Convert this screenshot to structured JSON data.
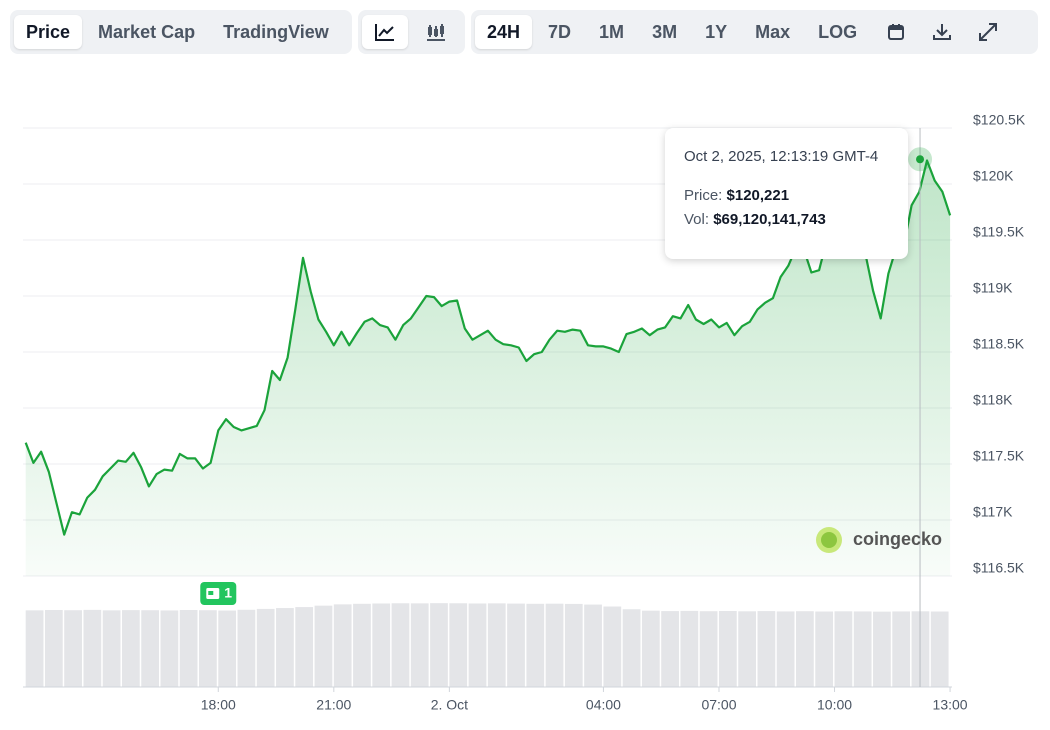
{
  "toolbar": {
    "tabs": [
      "Price",
      "Market Cap",
      "TradingView"
    ],
    "ranges": [
      "24H",
      "7D",
      "1M",
      "3M",
      "1Y",
      "Max",
      "LOG"
    ]
  },
  "chart_data": {
    "type": "line",
    "x": [
      13.0,
      13.2,
      13.4,
      13.6,
      13.8,
      14.0,
      14.2,
      14.4,
      14.6,
      14.8,
      15.0,
      15.2,
      15.4,
      15.6,
      15.8,
      16.0,
      16.2,
      16.4,
      16.6,
      16.8,
      17.0,
      17.2,
      17.4,
      17.6,
      17.8,
      18.0,
      18.2,
      18.4,
      18.6,
      18.8,
      19.0,
      19.2,
      19.4,
      19.6,
      19.8,
      20.0,
      20.2,
      20.4,
      20.6,
      20.8,
      21.0,
      21.2,
      21.4,
      21.6,
      21.8,
      22.0,
      22.2,
      22.4,
      22.6,
      22.8,
      23.0,
      23.2,
      23.4,
      23.6,
      23.8,
      24.0,
      24.2,
      24.4,
      24.6,
      24.8,
      25.0,
      25.2,
      25.4,
      25.6,
      25.8,
      26.0,
      26.2,
      26.4,
      26.6,
      26.8,
      27.0,
      27.2,
      27.4,
      27.6,
      27.8,
      28.0,
      28.2,
      28.4,
      28.6,
      28.8,
      29.0,
      29.2,
      29.4,
      29.6,
      29.8,
      30.0,
      30.2,
      30.4,
      30.6,
      30.8,
      31.0,
      31.2,
      31.4,
      31.6,
      31.8,
      32.0,
      32.2,
      32.4,
      32.6,
      32.8,
      33.0,
      33.2,
      33.4,
      33.6,
      33.8,
      34.0,
      34.2,
      34.4,
      34.6,
      34.8,
      35.0,
      35.2,
      35.4,
      35.6,
      35.8,
      36.0,
      36.2,
      36.4,
      36.6,
      36.8,
      37.0
    ],
    "values": [
      117690,
      117510,
      117610,
      117430,
      117150,
      116870,
      117070,
      117050,
      117200,
      117270,
      117390,
      117460,
      117530,
      117520,
      117600,
      117470,
      117300,
      117410,
      117450,
      117440,
      117590,
      117550,
      117550,
      117460,
      117510,
      117800,
      117900,
      117830,
      117800,
      117820,
      117840,
      117980,
      118330,
      118250,
      118450,
      118880,
      119340,
      119040,
      118790,
      118680,
      118560,
      118680,
      118560,
      118670,
      118770,
      118800,
      118740,
      118720,
      118610,
      118740,
      118800,
      118900,
      119000,
      118990,
      118910,
      118950,
      118960,
      118710,
      118610,
      118650,
      118690,
      118610,
      118570,
      118560,
      118540,
      118420,
      118480,
      118500,
      118610,
      118690,
      118680,
      118700,
      118690,
      118560,
      118550,
      118550,
      118530,
      118500,
      118660,
      118680,
      118710,
      118650,
      118700,
      118720,
      118820,
      118800,
      118920,
      118790,
      118750,
      118790,
      118720,
      118760,
      118650,
      118730,
      118770,
      118880,
      118940,
      118980,
      119170,
      119270,
      119430,
      119420,
      119210,
      119230,
      119500,
      119710,
      119670,
      119640,
      119550,
      119380,
      119050,
      118800,
      119200,
      119430,
      119450,
      119810,
      119930,
      120210,
      120030,
      119930,
      119720
    ],
    "color": "#1ba33b",
    "xlim": [
      12.93,
      37.05
    ],
    "xticks": [
      {
        "value": 18,
        "label": "18:00"
      },
      {
        "value": 21,
        "label": "21:00"
      },
      {
        "value": 24,
        "label": "2. Oct"
      },
      {
        "value": 28,
        "label": "04:00"
      },
      {
        "value": 31,
        "label": "07:00"
      },
      {
        "value": 34,
        "label": "10:00"
      },
      {
        "value": 37,
        "label": "13:00"
      }
    ],
    "ylim": [
      116500,
      120750
    ],
    "yticks": [
      {
        "value": 116500,
        "label": "$116.5K"
      },
      {
        "value": 117000,
        "label": "$117K"
      },
      {
        "value": 117500,
        "label": "$117.5K"
      },
      {
        "value": 118000,
        "label": "$118K"
      },
      {
        "value": 118500,
        "label": "$118.5K"
      },
      {
        "value": 119000,
        "label": "$119K"
      },
      {
        "value": 119500,
        "label": "$119.5K"
      },
      {
        "value": 120000,
        "label": "$120K"
      },
      {
        "value": 120500,
        "label": "$120.5K"
      }
    ],
    "grid": true,
    "volume": {
      "axis": "y2",
      "color": "#e4e5e8",
      "x": [
        13.0,
        13.5,
        14.0,
        14.5,
        15.0,
        15.5,
        16.0,
        16.5,
        17.0,
        17.5,
        18.0,
        18.5,
        19.0,
        19.5,
        20.0,
        20.5,
        21.0,
        21.5,
        22.0,
        22.5,
        23.0,
        23.5,
        24.0,
        24.5,
        25.0,
        25.5,
        26.0,
        26.5,
        27.0,
        27.5,
        28.0,
        28.5,
        29.0,
        29.5,
        30.0,
        30.5,
        31.0,
        31.5,
        32.0,
        32.5,
        33.0,
        33.5,
        34.0,
        34.5,
        35.0,
        35.5,
        36.0,
        36.5
      ],
      "values": [
        70500000000,
        70800000000,
        70600000000,
        70900000000,
        70500000000,
        70700000000,
        70600000000,
        70400000000,
        70800000000,
        70600000000,
        70300000000,
        71000000000,
        71800000000,
        72600000000,
        73500000000,
        74800000000,
        76000000000,
        76500000000,
        76800000000,
        77000000000,
        76900000000,
        77100000000,
        77000000000,
        76800000000,
        76900000000,
        76700000000,
        76500000000,
        76600000000,
        76400000000,
        75800000000,
        74000000000,
        71500000000,
        70200000000,
        69800000000,
        70000000000,
        69700000000,
        69900000000,
        69600000000,
        69800000000,
        69500000000,
        69700000000,
        69400000000,
        69600000000,
        69500000000,
        69300000000,
        69500000000,
        69600000000,
        69400000000
      ]
    },
    "y2lim": [
      0,
      80000000000
    ],
    "events": [
      {
        "x": 18,
        "label": "1"
      }
    ],
    "tooltip": {
      "title": "Oct 2, 2025, 12:13:19 GMT-4",
      "x": 36.22,
      "labels": [
        "Price:",
        "Vol:"
      ],
      "values": [
        120221,
        69120141743
      ],
      "value_labels": [
        "$120,221",
        "$69,120,141,743"
      ]
    },
    "watermark": "coingecko"
  }
}
